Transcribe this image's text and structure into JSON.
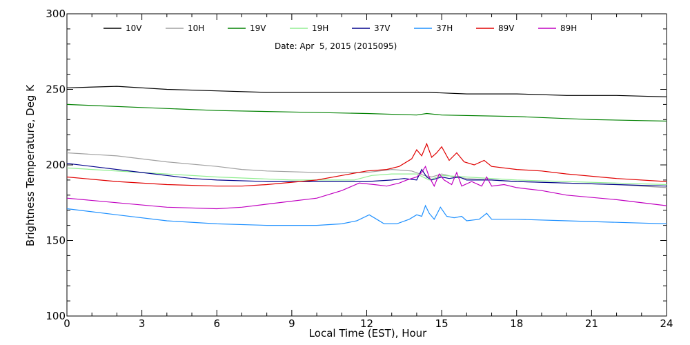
{
  "chart_data": {
    "type": "line",
    "xlabel": "Local Time (EST), Hour",
    "ylabel": "Brightness Temperature, Deg K",
    "annotation": "Date: Apr  5, 2015 (2015095)",
    "xlim": [
      0,
      24
    ],
    "ylim": [
      100,
      300
    ],
    "xticks": [
      0,
      3,
      6,
      9,
      12,
      15,
      18,
      21,
      24
    ],
    "yticks": [
      100,
      150,
      200,
      250,
      300
    ],
    "grid": false,
    "legend_position": "top",
    "series": [
      {
        "name": "10V",
        "color": "#000000",
        "points": [
          [
            0,
            251
          ],
          [
            2,
            252
          ],
          [
            4,
            250
          ],
          [
            6,
            249
          ],
          [
            8,
            248
          ],
          [
            10,
            248
          ],
          [
            12,
            248
          ],
          [
            13,
            248
          ],
          [
            14,
            248
          ],
          [
            14.5,
            248
          ],
          [
            16,
            247
          ],
          [
            18,
            247
          ],
          [
            20,
            246
          ],
          [
            22,
            246
          ],
          [
            24,
            245
          ]
        ]
      },
      {
        "name": "10H",
        "color": "#a0a0a0",
        "points": [
          [
            0,
            208
          ],
          [
            2,
            206
          ],
          [
            4,
            202
          ],
          [
            6,
            199
          ],
          [
            7,
            197
          ],
          [
            8,
            196
          ],
          [
            10,
            195
          ],
          [
            12,
            195
          ],
          [
            13,
            197
          ],
          [
            13.8,
            196
          ],
          [
            14.3,
            193
          ],
          [
            14.6,
            192
          ],
          [
            15,
            194
          ],
          [
            15.5,
            192
          ],
          [
            16,
            191
          ],
          [
            17,
            190
          ],
          [
            18,
            189
          ],
          [
            20,
            188
          ],
          [
            22,
            187
          ],
          [
            24,
            185
          ]
        ]
      },
      {
        "name": "19V",
        "color": "#008000",
        "points": [
          [
            0,
            240
          ],
          [
            3,
            238
          ],
          [
            6,
            236
          ],
          [
            9,
            235
          ],
          [
            12,
            234
          ],
          [
            14,
            233
          ],
          [
            14.4,
            234
          ],
          [
            15,
            233
          ],
          [
            18,
            232
          ],
          [
            21,
            230
          ],
          [
            24,
            229
          ]
        ]
      },
      {
        "name": "19H",
        "color": "#90ee90",
        "points": [
          [
            0,
            198
          ],
          [
            3,
            195
          ],
          [
            6,
            192
          ],
          [
            9,
            190
          ],
          [
            11.5,
            190
          ],
          [
            12.2,
            193
          ],
          [
            13,
            194
          ],
          [
            14,
            194
          ],
          [
            14.5,
            190
          ],
          [
            15,
            193
          ],
          [
            16,
            192
          ],
          [
            17,
            191
          ],
          [
            18,
            190
          ],
          [
            20,
            189
          ],
          [
            22,
            188
          ],
          [
            24,
            187
          ]
        ]
      },
      {
        "name": "37V",
        "color": "#00008b",
        "points": [
          [
            0,
            201
          ],
          [
            1,
            199
          ],
          [
            3,
            195
          ],
          [
            5,
            191
          ],
          [
            6,
            190
          ],
          [
            8,
            189
          ],
          [
            10,
            189
          ],
          [
            12,
            189
          ],
          [
            13,
            190
          ],
          [
            13.5,
            191
          ],
          [
            14,
            190
          ],
          [
            14.2,
            197
          ],
          [
            14.4,
            192
          ],
          [
            14.6,
            190
          ],
          [
            15,
            192
          ],
          [
            15.3,
            191
          ],
          [
            15.7,
            192
          ],
          [
            16,
            190
          ],
          [
            17,
            190
          ],
          [
            18,
            189
          ],
          [
            20,
            188
          ],
          [
            22,
            187
          ],
          [
            24,
            186
          ]
        ]
      },
      {
        "name": "37H",
        "color": "#1e90ff",
        "points": [
          [
            0,
            171
          ],
          [
            2,
            167
          ],
          [
            4,
            163
          ],
          [
            6,
            161
          ],
          [
            8,
            160
          ],
          [
            10,
            160
          ],
          [
            11,
            161
          ],
          [
            11.6,
            163
          ],
          [
            12.1,
            167
          ],
          [
            12.4,
            164
          ],
          [
            12.7,
            161
          ],
          [
            13.2,
            161
          ],
          [
            13.7,
            164
          ],
          [
            14,
            167
          ],
          [
            14.2,
            166
          ],
          [
            14.35,
            173
          ],
          [
            14.5,
            168
          ],
          [
            14.7,
            164
          ],
          [
            14.95,
            172
          ],
          [
            15.2,
            166
          ],
          [
            15.5,
            165
          ],
          [
            15.8,
            166
          ],
          [
            16,
            163
          ],
          [
            16.5,
            164
          ],
          [
            16.8,
            168
          ],
          [
            17,
            164
          ],
          [
            18,
            164
          ],
          [
            20,
            163
          ],
          [
            22,
            162
          ],
          [
            24,
            161
          ]
        ]
      },
      {
        "name": "89V",
        "color": "#e00000",
        "points": [
          [
            0,
            192
          ],
          [
            2,
            189
          ],
          [
            4,
            187
          ],
          [
            6,
            186
          ],
          [
            7,
            186
          ],
          [
            8,
            187
          ],
          [
            10,
            190
          ],
          [
            11,
            193
          ],
          [
            12,
            196
          ],
          [
            12.8,
            197
          ],
          [
            13.3,
            199
          ],
          [
            13.8,
            204
          ],
          [
            14,
            210
          ],
          [
            14.2,
            206
          ],
          [
            14.4,
            214
          ],
          [
            14.6,
            205
          ],
          [
            14.8,
            208
          ],
          [
            15,
            212
          ],
          [
            15.3,
            203
          ],
          [
            15.6,
            208
          ],
          [
            15.9,
            202
          ],
          [
            16.3,
            200
          ],
          [
            16.7,
            203
          ],
          [
            17,
            199
          ],
          [
            18,
            197
          ],
          [
            19,
            196
          ],
          [
            20,
            194
          ],
          [
            22,
            191
          ],
          [
            24,
            189
          ]
        ]
      },
      {
        "name": "89H",
        "color": "#c000c0",
        "points": [
          [
            0,
            178
          ],
          [
            2,
            175
          ],
          [
            4,
            172
          ],
          [
            6,
            171
          ],
          [
            7,
            172
          ],
          [
            8,
            174
          ],
          [
            10,
            178
          ],
          [
            11,
            183
          ],
          [
            11.7,
            188
          ],
          [
            12.3,
            187
          ],
          [
            12.8,
            186
          ],
          [
            13.3,
            188
          ],
          [
            13.6,
            190
          ],
          [
            14,
            192
          ],
          [
            14.2,
            195
          ],
          [
            14.35,
            199
          ],
          [
            14.5,
            192
          ],
          [
            14.7,
            186
          ],
          [
            14.9,
            194
          ],
          [
            15.1,
            190
          ],
          [
            15.4,
            187
          ],
          [
            15.6,
            195
          ],
          [
            15.8,
            186
          ],
          [
            16.2,
            189
          ],
          [
            16.6,
            186
          ],
          [
            16.8,
            192
          ],
          [
            17,
            186
          ],
          [
            17.5,
            187
          ],
          [
            18,
            185
          ],
          [
            19,
            183
          ],
          [
            20,
            180
          ],
          [
            22,
            177
          ],
          [
            24,
            173
          ]
        ]
      }
    ]
  }
}
